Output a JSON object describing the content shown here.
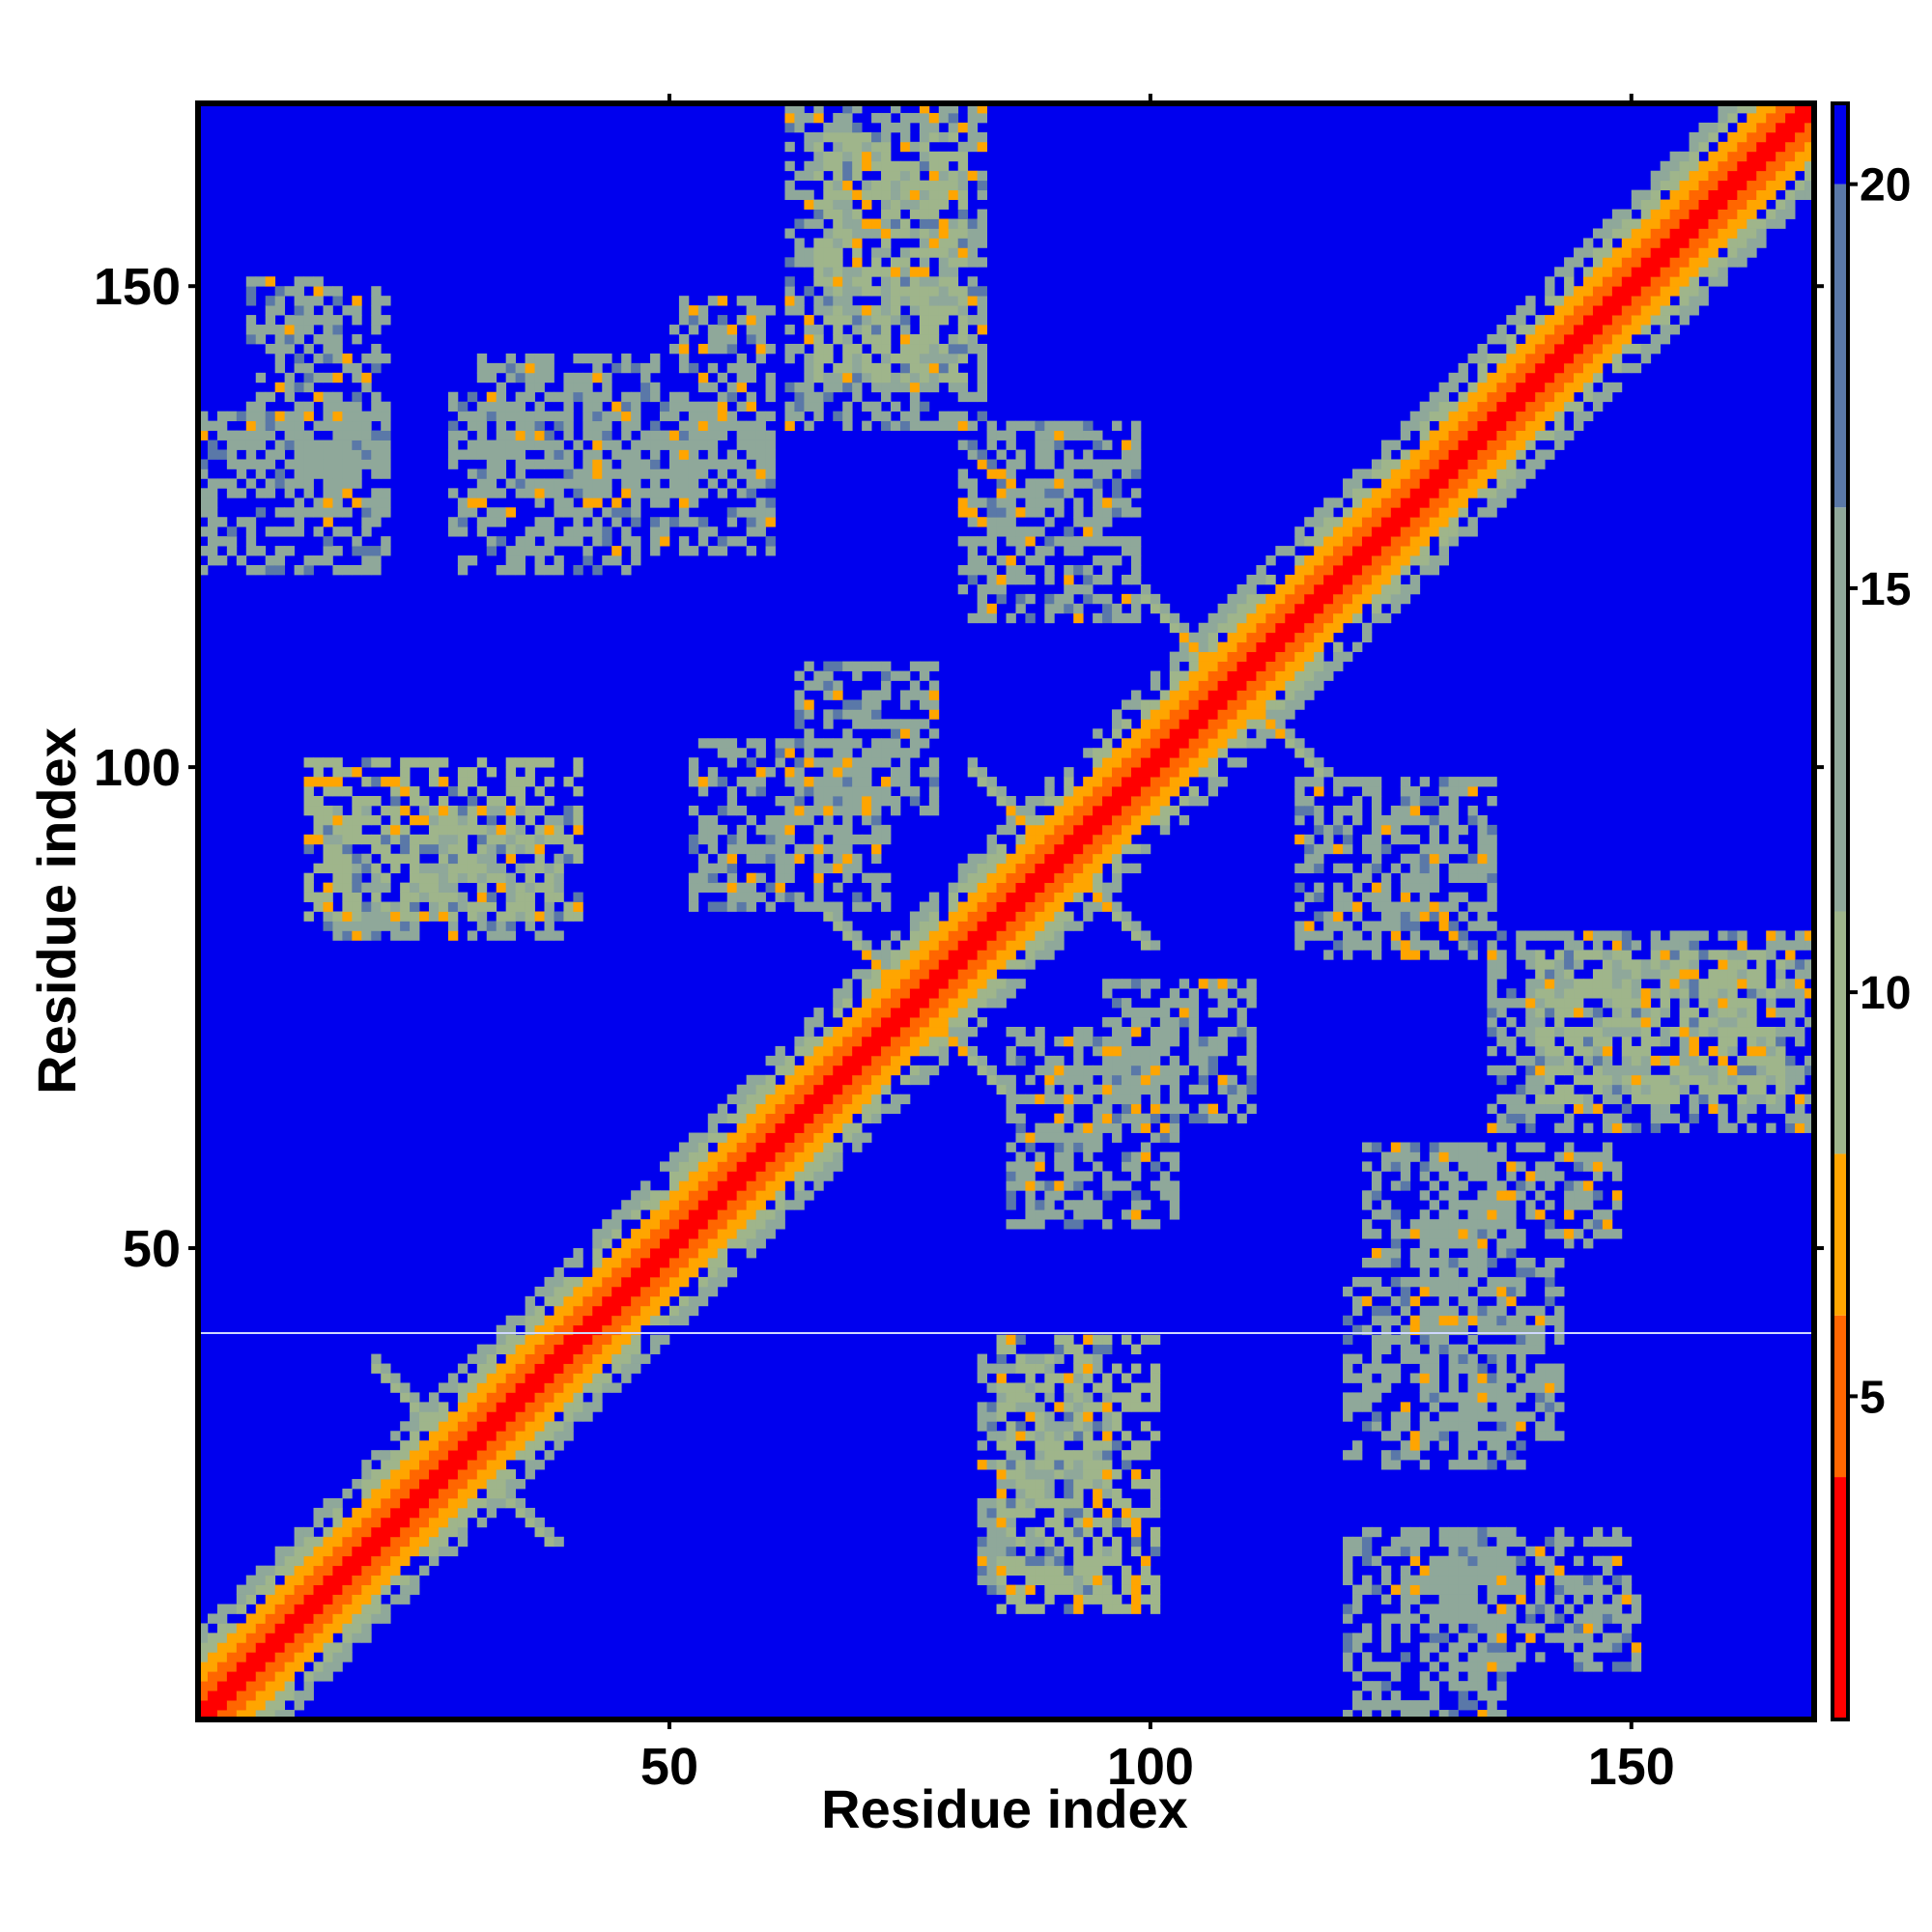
{
  "chart_data": {
    "type": "heatmap",
    "title": "",
    "xlabel": "Residue index",
    "ylabel": "Residue index",
    "xlim": [
      1,
      168
    ],
    "ylim": [
      1,
      168
    ],
    "x_ticks": [
      50,
      100,
      150
    ],
    "y_ticks": [
      50,
      100,
      150
    ],
    "colorbar": {
      "range": [
        1,
        21
      ],
      "ticks": [
        5,
        10,
        15,
        20
      ],
      "colors": [
        {
          "from": 1,
          "to": 4,
          "color": "#ff0000"
        },
        {
          "from": 4,
          "to": 6,
          "color": "#ff6600"
        },
        {
          "from": 6,
          "to": 8,
          "color": "#ffa500"
        },
        {
          "from": 8,
          "to": 11,
          "color": "#9fb58b"
        },
        {
          "from": 11,
          "to": 16,
          "color": "#8fa89a"
        },
        {
          "from": 16,
          "to": 20,
          "color": "#5a78a8"
        },
        {
          "from": 20,
          "to": 21,
          "color": "#0000ee"
        }
      ]
    },
    "background_color": "#0000ee",
    "symmetric": true,
    "contact_bands": [
      {
        "kind": "main-diagonal",
        "i": [
          1,
          168
        ],
        "j": [
          1,
          168
        ],
        "value": 2
      },
      {
        "kind": "cross",
        "center": [
          75,
          75
        ],
        "value": 7
      },
      {
        "kind": "cross",
        "center": [
          90,
          90
        ],
        "value": 7
      },
      {
        "kind": "cross",
        "center": [
          108,
          108
        ],
        "value": 7
      },
      {
        "kind": "cross",
        "center": [
          28,
          28
        ],
        "value": 9
      },
      {
        "kind": "block",
        "i": [
          1,
          20
        ],
        "j": [
          120,
          136
        ],
        "value": 12
      },
      {
        "kind": "block",
        "i": [
          27,
          46
        ],
        "j": [
          120,
          138
        ],
        "value": 11
      },
      {
        "kind": "block",
        "i": [
          48,
          60
        ],
        "j": [
          122,
          138
        ],
        "value": 12
      },
      {
        "kind": "block",
        "i": [
          62,
          82
        ],
        "j": [
          135,
          168
        ],
        "value": 11
      },
      {
        "kind": "block",
        "i": [
          80,
          98
        ],
        "j": [
          115,
          135
        ],
        "value": 12
      },
      {
        "kind": "block",
        "i": [
          12,
          40
        ],
        "j": [
          84,
          100
        ],
        "value": 10
      },
      {
        "kind": "block",
        "i": [
          52,
          72
        ],
        "j": [
          85,
          102
        ],
        "value": 12
      },
      {
        "kind": "block",
        "i": [
          82,
          95
        ],
        "j": [
          14,
          38
        ],
        "value": 11
      },
      {
        "kind": "block",
        "i": [
          130,
          150
        ],
        "j": [
          6,
          20
        ],
        "value": 12
      },
      {
        "kind": "block",
        "i": [
          128,
          142
        ],
        "j": [
          30,
          48
        ],
        "value": 11
      },
      {
        "kind": "block",
        "i": [
          140,
          165
        ],
        "j": [
          65,
          80
        ],
        "value": 10
      },
      {
        "kind": "block",
        "i": [
          95,
          110
        ],
        "j": [
          63,
          77
        ],
        "value": 12
      },
      {
        "kind": "block",
        "i": [
          130,
          148
        ],
        "j": [
          50,
          60
        ],
        "value": 12
      }
    ]
  }
}
